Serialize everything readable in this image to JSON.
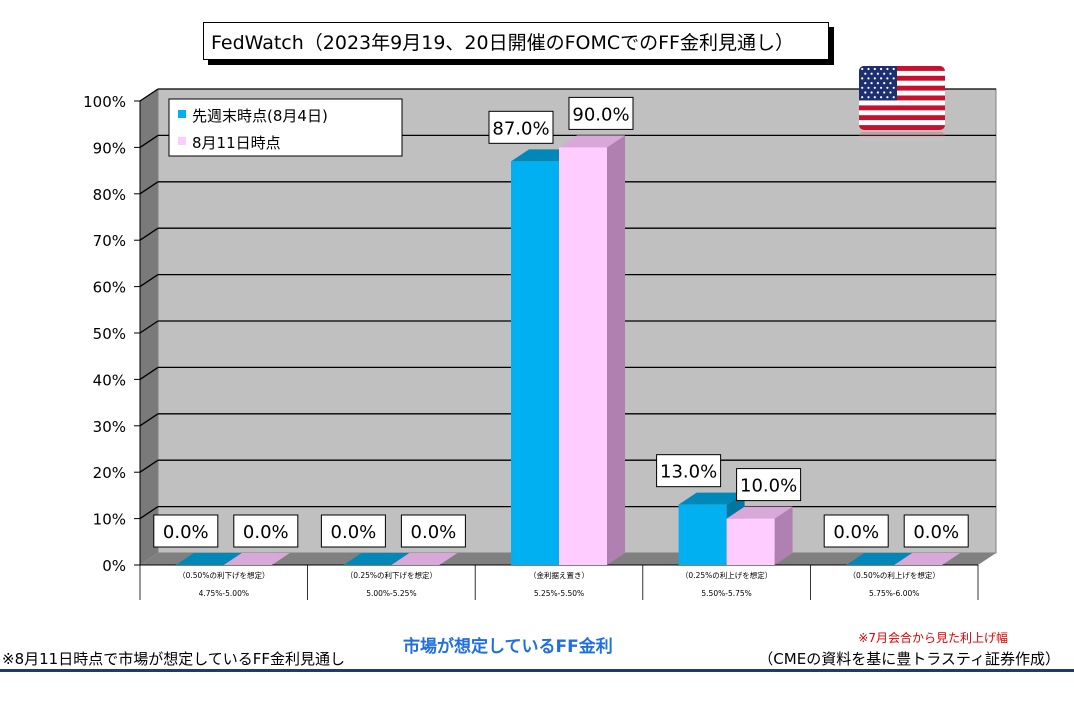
{
  "title": "FedWatch（2023年9月19、20日開催のFOMCでのFF金利見通し）",
  "footnote_left": "※8月11日時点で市場が想定しているFF金利見通し",
  "x_axis_title": "市場が想定しているFF金利",
  "footnote_red": "※7月会合から見た利上げ幅",
  "source_note": "（CMEの資料を基に豊トラスティ証券作成）",
  "colors": {
    "series1": "#00b0f0",
    "series1_top": "#0088b8",
    "series1_side": "#0077a0",
    "series2": "#ffccff",
    "series2_top": "#d8a8d8",
    "series2_side": "#b080b0",
    "wall": "#c0c0c0",
    "floor": "#808080"
  },
  "chart_data": {
    "type": "bar",
    "categories": [
      {
        "sub": "（0.50%の利下げを想定）",
        "range": "4.75%-5.00%"
      },
      {
        "sub": "（0.25%の利下げを想定）",
        "range": "5.00%-5.25%"
      },
      {
        "sub": "（金利据え置き）",
        "range": "5.25%-5.50%"
      },
      {
        "sub": "（0.25%の利上げを想定）",
        "range": "5.50%-5.75%"
      },
      {
        "sub": "（0.50%の利上げを想定）",
        "range": "5.75%-6.00%"
      }
    ],
    "series": [
      {
        "name": "先週末時点(8月4日)",
        "values": [
          0.0,
          0.0,
          87.0,
          13.0,
          0.0
        ],
        "labels": [
          "0.0%",
          "0.0%",
          "87.0%",
          "13.0%",
          "0.0%"
        ]
      },
      {
        "name": "8月11日時点",
        "values": [
          0.0,
          0.0,
          90.0,
          10.0,
          0.0
        ],
        "labels": [
          "0.0%",
          "0.0%",
          "90.0%",
          "10.0%",
          "0.0%"
        ]
      }
    ],
    "yticks": [
      "0%",
      "10%",
      "20%",
      "30%",
      "40%",
      "50%",
      "60%",
      "70%",
      "80%",
      "90%",
      "100%"
    ],
    "ylim": [
      0,
      100
    ],
    "grid": true,
    "legend_position": "top-left"
  }
}
